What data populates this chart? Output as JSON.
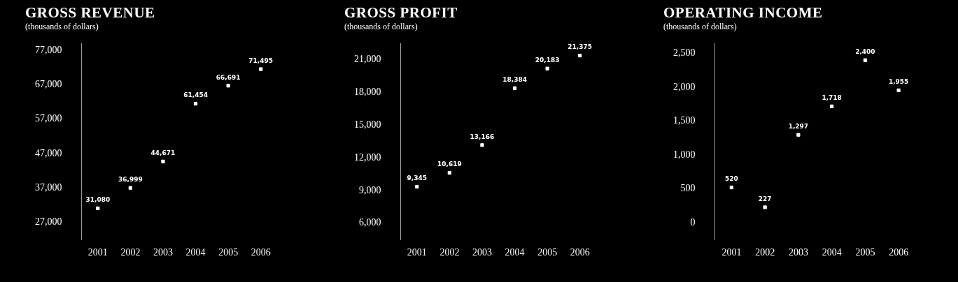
{
  "chart_data": [
    {
      "type": "scatter",
      "title": "GROSS REVENUE",
      "subtitle": "(thousands of dollars)",
      "categories": [
        "2001",
        "2002",
        "2003",
        "2004",
        "2005",
        "2006"
      ],
      "series": [
        {
          "color": "#ffffff",
          "values": [
            31080,
            36999,
            44671,
            61454,
            66691,
            71495
          ],
          "value_labels": [
            "31,080",
            "36,999",
            "44,671",
            "61,454",
            "66,691",
            "71,495"
          ]
        }
      ],
      "ylim": [
        22000,
        79000
      ],
      "yticks": [
        {
          "value": 27000,
          "label": "27,000"
        },
        {
          "value": 37000,
          "label": "37,000"
        },
        {
          "value": 47000,
          "label": "47,000"
        },
        {
          "value": 57000,
          "label": "57,000"
        },
        {
          "value": 67000,
          "label": "67,000"
        },
        {
          "value": 77000,
          "label": "77,000"
        }
      ],
      "grid": false,
      "legend": false,
      "marker": "square"
    },
    {
      "type": "scatter",
      "title": "GROSS PROFIT",
      "subtitle": "(thousands of dollars)",
      "categories": [
        "2001",
        "2002",
        "2003",
        "2004",
        "2005",
        "2006"
      ],
      "series": [
        {
          "color": "#ffffff",
          "values": [
            9345,
            10619,
            13166,
            18384,
            20183,
            21375
          ],
          "value_labels": [
            "9,345",
            "10,619",
            "13,166",
            "18,384",
            "20,183",
            "21,375"
          ]
        }
      ],
      "ylim": [
        4500,
        22500
      ],
      "yticks": [
        {
          "value": 6000,
          "label": "6,000"
        },
        {
          "value": 9000,
          "label": "9,000"
        },
        {
          "value": 12000,
          "label": "12,000"
        },
        {
          "value": 15000,
          "label": "15,000"
        },
        {
          "value": 18000,
          "label": "18,000"
        },
        {
          "value": 21000,
          "label": "21,000"
        }
      ],
      "grid": false,
      "legend": false,
      "marker": "square"
    },
    {
      "type": "scatter",
      "title": "OPERATING INCOME",
      "subtitle": "(thousands of dollars)",
      "categories": [
        "2001",
        "2002",
        "2003",
        "2004",
        "2005",
        "2006"
      ],
      "series": [
        {
          "color": "#ffffff",
          "values": [
            520,
            227,
            1297,
            1718,
            2400,
            1955
          ],
          "value_labels": [
            "520",
            "227",
            "1,297",
            "1,718",
            "2,400",
            "1,955"
          ]
        }
      ],
      "ylim": [
        -250,
        2650
      ],
      "yticks": [
        0,
        500,
        {
          "value": 1000,
          "label": "1,000"
        },
        {
          "value": 1500,
          "label": "1,500"
        },
        {
          "value": 2000,
          "label": "2,000"
        },
        {
          "value": 2500,
          "label": "2,500"
        }
      ],
      "grid": false,
      "legend": false,
      "marker": "square"
    }
  ]
}
